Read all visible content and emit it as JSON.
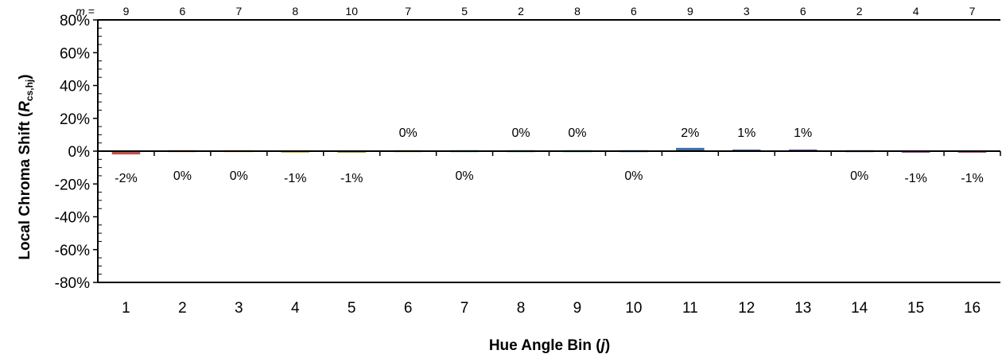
{
  "chart_data": {
    "type": "bar",
    "categories": [
      "1",
      "2",
      "3",
      "4",
      "5",
      "6",
      "7",
      "8",
      "9",
      "10",
      "11",
      "12",
      "13",
      "14",
      "15",
      "16"
    ],
    "values": [
      -2,
      0,
      0,
      -1,
      -1,
      0,
      0,
      0,
      0,
      0,
      2,
      1,
      1,
      0,
      -1,
      -1
    ],
    "value_labels": [
      "-2%",
      "0%",
      "0%",
      "-1%",
      "-1%",
      "0%",
      "0%",
      "0%",
      "0%",
      "0%",
      "2%",
      "1%",
      "1%",
      "0%",
      "-1%",
      "-1%"
    ],
    "bar_colors": [
      "#c0504d",
      "#c97a3c",
      "#d9a33a",
      "#c8b54a",
      "#9aa53a",
      "#5f9e4a",
      "#3f8f5a",
      "#2f8f7a",
      "#2f8a94",
      "#2f7a9e",
      "#3f6fa8",
      "#4a63aa",
      "#5a58a6",
      "#7a4e9e",
      "#9a4a8a",
      "#b04a6a"
    ],
    "m_prefix": "m = ",
    "m_values": [
      "9",
      "6",
      "7",
      "8",
      "10",
      "7",
      "5",
      "2",
      "8",
      "6",
      "9",
      "3",
      "6",
      "2",
      "4",
      "7"
    ],
    "y_ticks": [
      "80%",
      "60%",
      "40%",
      "20%",
      "0%",
      "-20%",
      "-40%",
      "-60%",
      "-80%"
    ],
    "ylim": [
      -80,
      80
    ],
    "ylabel": "Local Chroma Shift (",
    "ylabel_italic": "R",
    "ylabel_sub": "cs,hj",
    "ylabel_close": ")",
    "xlabel": "Hue Angle Bin (",
    "xlabel_italic": "j",
    "xlabel_close": ")",
    "grid": false,
    "legend": "none"
  }
}
